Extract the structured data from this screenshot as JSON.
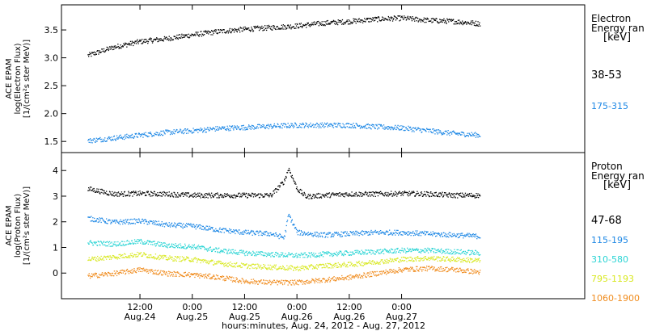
{
  "chart_data": [
    {
      "type": "scatter",
      "panel": "electron",
      "ylabel_lines": [
        "ACE EPAM",
        "log(Electron Flux)",
        "[1/(cm²s ster MeV)]"
      ],
      "legend_title": [
        "Electron",
        "Energy ran",
        "[keV]"
      ],
      "ylim": [
        1.3,
        3.95
      ],
      "yticks": [
        "1.5",
        "2.0",
        "2.5",
        "3.0",
        "3.5"
      ],
      "series": [
        {
          "name": "38-53",
          "color": "#000000",
          "points": [
            [
              0,
              3.05
            ],
            [
              6,
              3.2
            ],
            [
              12,
              3.3
            ],
            [
              18,
              3.35
            ],
            [
              24,
              3.42
            ],
            [
              30,
              3.48
            ],
            [
              36,
              3.52
            ],
            [
              42,
              3.55
            ],
            [
              48,
              3.58
            ],
            [
              54,
              3.63
            ],
            [
              60,
              3.66
            ],
            [
              66,
              3.7
            ],
            [
              72,
              3.72
            ],
            [
              78,
              3.68
            ],
            [
              84,
              3.66
            ],
            [
              90,
              3.62
            ]
          ]
        },
        {
          "name": "175-315",
          "color": "#1e88e5",
          "points": [
            [
              0,
              1.52
            ],
            [
              6,
              1.57
            ],
            [
              12,
              1.62
            ],
            [
              18,
              1.67
            ],
            [
              24,
              1.7
            ],
            [
              30,
              1.74
            ],
            [
              36,
              1.76
            ],
            [
              42,
              1.78
            ],
            [
              48,
              1.8
            ],
            [
              54,
              1.8
            ],
            [
              60,
              1.8
            ],
            [
              66,
              1.77
            ],
            [
              72,
              1.75
            ],
            [
              78,
              1.7
            ],
            [
              84,
              1.65
            ],
            [
              90,
              1.62
            ]
          ]
        }
      ]
    },
    {
      "type": "scatter",
      "panel": "proton",
      "ylabel_lines": [
        "ACE EPAM",
        "log(Proton Flux)",
        "[1/(cm²s ster MeV)]"
      ],
      "legend_title": [
        "Proton",
        "Energy ran",
        "[keV]"
      ],
      "ylim": [
        -1.0,
        4.7
      ],
      "yticks": [
        "0",
        "1",
        "2",
        "3",
        "4"
      ],
      "series": [
        {
          "name": "47-68",
          "color": "#000000",
          "points": [
            [
              0,
              3.3
            ],
            [
              6,
              3.1
            ],
            [
              12,
              3.12
            ],
            [
              18,
              3.1
            ],
            [
              24,
              3.05
            ],
            [
              30,
              3.05
            ],
            [
              36,
              3.05
            ],
            [
              42,
              3.05
            ],
            [
              45,
              3.6
            ],
            [
              46,
              4.1
            ],
            [
              48,
              3.3
            ],
            [
              50,
              3.0
            ],
            [
              54,
              3.05
            ],
            [
              60,
              3.1
            ],
            [
              66,
              3.1
            ],
            [
              72,
              3.12
            ],
            [
              78,
              3.1
            ],
            [
              84,
              3.05
            ],
            [
              90,
              3.05
            ]
          ]
        },
        {
          "name": "115-195",
          "color": "#1e88e5",
          "points": [
            [
              0,
              2.15
            ],
            [
              6,
              2.0
            ],
            [
              12,
              2.05
            ],
            [
              18,
              1.9
            ],
            [
              24,
              1.85
            ],
            [
              30,
              1.7
            ],
            [
              36,
              1.6
            ],
            [
              42,
              1.55
            ],
            [
              45,
              1.4
            ],
            [
              46,
              2.3
            ],
            [
              48,
              1.6
            ],
            [
              54,
              1.5
            ],
            [
              60,
              1.55
            ],
            [
              66,
              1.6
            ],
            [
              72,
              1.6
            ],
            [
              78,
              1.55
            ],
            [
              84,
              1.5
            ],
            [
              90,
              1.45
            ]
          ]
        },
        {
          "name": "310-580",
          "color": "#2ad4d4",
          "points": [
            [
              0,
              1.2
            ],
            [
              6,
              1.15
            ],
            [
              12,
              1.25
            ],
            [
              18,
              1.1
            ],
            [
              24,
              1.05
            ],
            [
              30,
              0.9
            ],
            [
              36,
              0.8
            ],
            [
              42,
              0.75
            ],
            [
              48,
              0.7
            ],
            [
              54,
              0.75
            ],
            [
              60,
              0.8
            ],
            [
              66,
              0.85
            ],
            [
              72,
              0.9
            ],
            [
              78,
              0.9
            ],
            [
              84,
              0.85
            ],
            [
              90,
              0.8
            ]
          ]
        },
        {
          "name": "795-1193",
          "color": "#d8e820",
          "points": [
            [
              0,
              0.55
            ],
            [
              6,
              0.65
            ],
            [
              12,
              0.75
            ],
            [
              18,
              0.6
            ],
            [
              24,
              0.55
            ],
            [
              30,
              0.4
            ],
            [
              36,
              0.3
            ],
            [
              42,
              0.25
            ],
            [
              48,
              0.2
            ],
            [
              54,
              0.3
            ],
            [
              60,
              0.35
            ],
            [
              66,
              0.45
            ],
            [
              72,
              0.55
            ],
            [
              78,
              0.6
            ],
            [
              84,
              0.55
            ],
            [
              90,
              0.5
            ]
          ]
        },
        {
          "name": "1060-1900",
          "color": "#f08c1e",
          "points": [
            [
              0,
              -0.1
            ],
            [
              6,
              0.0
            ],
            [
              12,
              0.15
            ],
            [
              18,
              0.0
            ],
            [
              24,
              -0.05
            ],
            [
              30,
              -0.15
            ],
            [
              36,
              -0.3
            ],
            [
              42,
              -0.35
            ],
            [
              48,
              -0.35
            ],
            [
              54,
              -0.25
            ],
            [
              60,
              -0.15
            ],
            [
              66,
              0.0
            ],
            [
              72,
              0.15
            ],
            [
              78,
              0.2
            ],
            [
              84,
              0.15
            ],
            [
              90,
              0.05
            ]
          ]
        }
      ]
    }
  ],
  "x_axis": {
    "xlim": [
      -6,
      114
    ],
    "ticks": [
      {
        "x": 12,
        "top": "12:00",
        "bottom": "Aug.24"
      },
      {
        "x": 24,
        "top": "0:00",
        "bottom": "Aug.25"
      },
      {
        "x": 36,
        "top": "12:00",
        "bottom": "Aug.25"
      },
      {
        "x": 48,
        "top": "0:00",
        "bottom": "Aug.26"
      },
      {
        "x": 60,
        "top": "12:00",
        "bottom": "Aug.26"
      },
      {
        "x": 72,
        "top": "0:00",
        "bottom": "Aug.27"
      }
    ],
    "xlabel": "hours:minutes, Aug. 24, 2012 - Aug. 27, 2012"
  }
}
